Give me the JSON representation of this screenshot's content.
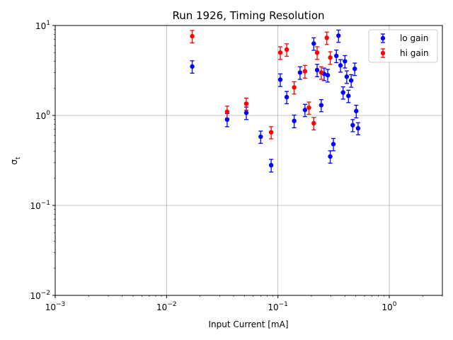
{
  "chart_data": {
    "type": "scatter",
    "title": "Run 1926, Timing Resolution",
    "xlabel": "Input Current [mA]",
    "ylabel": "σ",
    "ylabel_subscript": "t",
    "xscale": "log",
    "yscale": "log",
    "xlim": [
      0.001,
      3.0
    ],
    "ylim": [
      0.01,
      10
    ],
    "grid": true,
    "legend_position": "top-right",
    "x_ticks": [
      {
        "value": 0.001,
        "base": "10",
        "exp": "−3"
      },
      {
        "value": 0.01,
        "base": "10",
        "exp": "−2"
      },
      {
        "value": 0.1,
        "base": "10",
        "exp": "−1"
      },
      {
        "value": 1,
        "base": "10",
        "exp": "0"
      }
    ],
    "y_ticks": [
      {
        "value": 0.01,
        "base": "10",
        "exp": "−2"
      },
      {
        "value": 0.1,
        "base": "10",
        "exp": "−1"
      },
      {
        "value": 1,
        "base": "10",
        "exp": "0"
      },
      {
        "value": 10,
        "base": "10",
        "exp": "1"
      }
    ],
    "series": [
      {
        "name": "lo gain",
        "color": "#0000ff",
        "points": [
          {
            "x": 0.017,
            "y": 3.5,
            "err": 0.55
          },
          {
            "x": 0.035,
            "y": 0.9,
            "err": 0.15
          },
          {
            "x": 0.052,
            "y": 1.07,
            "err": 0.17
          },
          {
            "x": 0.07,
            "y": 0.58,
            "err": 0.09
          },
          {
            "x": 0.087,
            "y": 0.28,
            "err": 0.045
          },
          {
            "x": 0.105,
            "y": 2.5,
            "err": 0.4
          },
          {
            "x": 0.12,
            "y": 1.6,
            "err": 0.25
          },
          {
            "x": 0.14,
            "y": 0.87,
            "err": 0.14
          },
          {
            "x": 0.158,
            "y": 3.0,
            "err": 0.48
          },
          {
            "x": 0.175,
            "y": 1.15,
            "err": 0.18
          },
          {
            "x": 0.21,
            "y": 6.3,
            "err": 1.0
          },
          {
            "x": 0.225,
            "y": 3.2,
            "err": 0.5
          },
          {
            "x": 0.245,
            "y": 1.3,
            "err": 0.2
          },
          {
            "x": 0.26,
            "y": 2.9,
            "err": 0.46
          },
          {
            "x": 0.28,
            "y": 2.8,
            "err": 0.45
          },
          {
            "x": 0.295,
            "y": 0.35,
            "err": 0.055
          },
          {
            "x": 0.315,
            "y": 0.48,
            "err": 0.075
          },
          {
            "x": 0.335,
            "y": 4.6,
            "err": 0.73
          },
          {
            "x": 0.35,
            "y": 7.7,
            "err": 1.2
          },
          {
            "x": 0.365,
            "y": 3.6,
            "err": 0.57
          },
          {
            "x": 0.385,
            "y": 1.8,
            "err": 0.28
          },
          {
            "x": 0.4,
            "y": 4.0,
            "err": 0.63
          },
          {
            "x": 0.415,
            "y": 2.7,
            "err": 0.43
          },
          {
            "x": 0.43,
            "y": 1.65,
            "err": 0.26
          },
          {
            "x": 0.455,
            "y": 2.45,
            "err": 0.39
          },
          {
            "x": 0.47,
            "y": 0.78,
            "err": 0.12
          },
          {
            "x": 0.49,
            "y": 3.3,
            "err": 0.52
          },
          {
            "x": 0.505,
            "y": 1.12,
            "err": 0.18
          },
          {
            "x": 0.525,
            "y": 0.72,
            "err": 0.11
          }
        ]
      },
      {
        "name": "hi gain",
        "color": "#ff0000",
        "points": [
          {
            "x": 0.017,
            "y": 7.6,
            "err": 1.2
          },
          {
            "x": 0.035,
            "y": 1.1,
            "err": 0.17
          },
          {
            "x": 0.052,
            "y": 1.35,
            "err": 0.21
          },
          {
            "x": 0.087,
            "y": 0.65,
            "err": 0.1
          },
          {
            "x": 0.105,
            "y": 5.0,
            "err": 0.8
          },
          {
            "x": 0.12,
            "y": 5.4,
            "err": 0.86
          },
          {
            "x": 0.14,
            "y": 2.05,
            "err": 0.32
          },
          {
            "x": 0.175,
            "y": 3.1,
            "err": 0.5
          },
          {
            "x": 0.19,
            "y": 1.22,
            "err": 0.19
          },
          {
            "x": 0.21,
            "y": 0.82,
            "err": 0.13
          },
          {
            "x": 0.225,
            "y": 5.0,
            "err": 0.8
          },
          {
            "x": 0.245,
            "y": 3.0,
            "err": 0.48
          },
          {
            "x": 0.275,
            "y": 7.3,
            "err": 1.15
          },
          {
            "x": 0.295,
            "y": 4.4,
            "err": 0.7
          }
        ]
      }
    ]
  }
}
